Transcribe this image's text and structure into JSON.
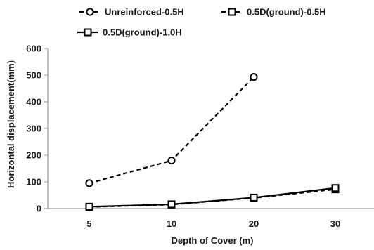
{
  "chart_data": {
    "type": "line",
    "title": "",
    "xlabel": "Depth of Cover (m)",
    "ylabel": "Horizontal displacement(mm)",
    "categories": [
      "5",
      "10",
      "20",
      "30"
    ],
    "ylim": [
      0,
      600
    ],
    "yticks": [
      0,
      100,
      200,
      300,
      400,
      500,
      600
    ],
    "grid": false,
    "legend_placement": "top",
    "series": [
      {
        "name": "Unreinforced-0.5H",
        "values": [
          95,
          180,
          493,
          null
        ],
        "line_style": "dashed",
        "marker": "circle",
        "color": "#000000"
      },
      {
        "name": "0.5D(ground)-0.5H",
        "values": [
          6,
          15,
          40,
          72
        ],
        "line_style": "dashed",
        "marker": "square",
        "color": "#000000"
      },
      {
        "name": "0.5D(ground)-1.0H",
        "values": [
          7,
          16,
          41,
          77
        ],
        "line_style": "solid",
        "marker": "square",
        "color": "#000000"
      }
    ]
  }
}
